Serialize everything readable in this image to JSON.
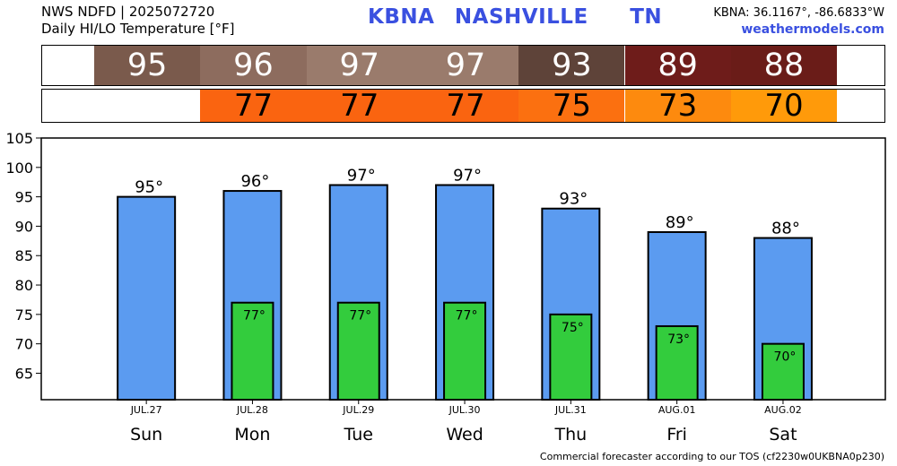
{
  "header": {
    "line1": "NWS NDFD | 2025072720",
    "line2": "Daily HI/LO Temperature [°F]",
    "station": "KBNA",
    "city": "NASHVILLE",
    "state": "TN",
    "coords": "KBNA: 36.1167°, -86.6833°W",
    "site": "weathermodels.com"
  },
  "footer": "Commercial forecaster according to our TOS (cf2230w0UKBNA0p230)",
  "colors": {
    "hi_bar": "#5b9bf0",
    "lo_bar": "#33cc3d",
    "hi_cells": [
      "#7a5a4c",
      "#8d6c5e",
      "#9a7b6c",
      "#9a7b6c",
      "#5e4339",
      "#6e1c1a",
      "#6a1c18"
    ],
    "lo_cells": [
      "#ffffff",
      "#fa6410",
      "#fa6410",
      "#fa6410",
      "#fb7010",
      "#fd8a0e",
      "#ff9a0a"
    ]
  },
  "chart_data": {
    "type": "bar",
    "title": "Daily HI/LO Temperature [°F]",
    "categories": [
      "Sun",
      "Mon",
      "Tue",
      "Wed",
      "Thu",
      "Fri",
      "Sat"
    ],
    "dates": [
      "JUL.27",
      "JUL.28",
      "JUL.29",
      "JUL.30",
      "JUL.31",
      "AUG.01",
      "AUG.02"
    ],
    "series": [
      {
        "name": "HI",
        "values": [
          95,
          96,
          97,
          97,
          93,
          89,
          88
        ]
      },
      {
        "name": "LO",
        "values": [
          null,
          77,
          77,
          77,
          75,
          73,
          70
        ]
      }
    ],
    "ylim": [
      60.5,
      105
    ],
    "yticks": [
      65,
      70,
      75,
      80,
      85,
      90,
      95,
      100,
      105
    ],
    "degree_symbol": "°",
    "grid": false
  }
}
